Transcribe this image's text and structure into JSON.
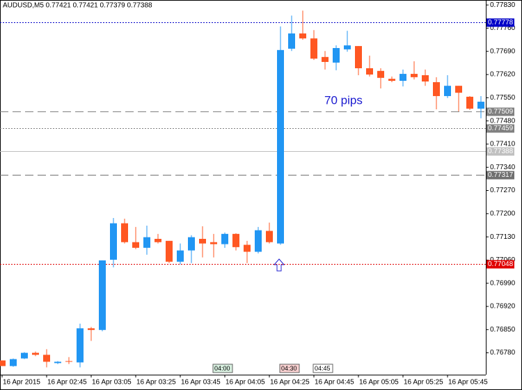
{
  "chart_data": {
    "type": "candlestick",
    "title": "AUDUSD,M5  0.77421 0.77421 0.77379 0.77388",
    "categories": [
      "16 Apr 2015",
      null,
      null,
      null,
      "16 Apr 02:45",
      null,
      null,
      null,
      "16 Apr 03:05",
      null,
      null,
      null,
      "16 Apr 03:25",
      null,
      null,
      null,
      "16 Apr 03:45",
      null,
      null,
      null,
      "16 Apr 04:05",
      null,
      null,
      null,
      "16 Apr 04:25",
      null,
      null,
      null,
      "16 Apr 04:45",
      null,
      null,
      null,
      "16 Apr 05:05",
      null,
      null,
      null,
      "16 Apr 05:25",
      null,
      null,
      null,
      "16 Apr 05:45",
      null,
      null,
      null
    ],
    "open": [
      0.76757,
      0.7674,
      0.76763,
      0.7678,
      0.76774,
      0.76749,
      0.76755,
      0.76751,
      0.76854,
      0.76849,
      0.77061,
      0.77171,
      0.77114,
      0.77097,
      0.77124,
      0.77118,
      0.77055,
      0.77089,
      0.77124,
      0.77114,
      0.77108,
      0.77139,
      0.77106,
      0.77085,
      0.77148,
      0.7711,
      0.77698,
      0.77744,
      0.77729,
      0.77673,
      0.77656,
      0.77696,
      0.77706,
      0.77639,
      0.77631,
      0.77607,
      0.77601,
      0.77622,
      0.77618,
      0.77597,
      0.77555,
      0.77586,
      0.77553,
      0.77517
    ],
    "high": [
      0.76757,
      0.76763,
      0.76782,
      0.76784,
      0.76791,
      0.76755,
      0.76767,
      0.76868,
      0.76858,
      0.77059,
      0.77187,
      0.77185,
      0.7716,
      0.77164,
      0.77139,
      0.77118,
      0.7711,
      0.77135,
      0.77162,
      0.77139,
      0.77143,
      0.77141,
      0.77118,
      0.7716,
      0.77173,
      0.77765,
      0.77798,
      0.77813,
      0.77754,
      0.77691,
      0.77708,
      0.77752,
      0.77706,
      0.77677,
      0.77639,
      0.77614,
      0.77635,
      0.7766,
      0.77635,
      0.77612,
      0.77618,
      0.77586,
      0.77555,
      0.77555
    ],
    "low": [
      0.7674,
      0.76738,
      0.76761,
      0.7677,
      0.76736,
      0.76746,
      0.76746,
      0.76736,
      0.76816,
      0.76845,
      0.77038,
      0.7711,
      0.77093,
      0.77076,
      0.7711,
      0.77051,
      0.77047,
      0.77051,
      0.77068,
      0.77068,
      0.77097,
      0.77089,
      0.77051,
      0.7708,
      0.7711,
      0.77106,
      0.77691,
      0.77725,
      0.77664,
      0.77635,
      0.77633,
      0.77689,
      0.77618,
      0.77614,
      0.77578,
      0.77597,
      0.77584,
      0.77605,
      0.77586,
      0.77515,
      0.77549,
      0.77509,
      0.77513,
      0.77488
    ],
    "close": [
      0.7674,
      0.76761,
      0.7678,
      0.76774,
      0.76753,
      0.76753,
      0.76753,
      0.76854,
      0.76849,
      0.77059,
      0.77171,
      0.77114,
      0.77097,
      0.77129,
      0.77114,
      0.77055,
      0.77089,
      0.77129,
      0.7711,
      0.77108,
      0.77139,
      0.77099,
      0.77085,
      0.7715,
      0.77114,
      0.77694,
      0.77744,
      0.77729,
      0.77668,
      0.77658,
      0.777,
      0.77708,
      0.77639,
      0.7762,
      0.7761,
      0.77601,
      0.77622,
      0.77612,
      0.77599,
      0.77555,
      0.77586,
      0.77565,
      0.77517,
      0.77538
    ],
    "bull_color": "#2196f3",
    "bear_color": "#ff5722",
    "ylim": [
      0.76714,
      0.77845
    ],
    "yticks": [
      {
        "value": 0.7783,
        "label": "0.77830"
      },
      {
        "value": 0.7776,
        "label": "0.77760"
      },
      {
        "value": 0.7769,
        "label": "0.77690"
      },
      {
        "value": 0.7762,
        "label": "0.77620"
      },
      {
        "value": 0.7755,
        "label": "0.77550"
      },
      {
        "value": 0.7748,
        "label": "0.77480"
      },
      {
        "value": 0.7741,
        "label": "0.77410"
      },
      {
        "value": 0.7734,
        "label": "0.77340"
      },
      {
        "value": 0.7727,
        "label": "0.77270"
      },
      {
        "value": 0.772,
        "label": "0.77200"
      },
      {
        "value": 0.7713,
        "label": "0.77130"
      },
      {
        "value": 0.7706,
        "label": "0.77060"
      },
      {
        "value": 0.7699,
        "label": "0.76990"
      },
      {
        "value": 0.7692,
        "label": "0.76920"
      },
      {
        "value": 0.7685,
        "label": "0.76850"
      },
      {
        "value": 0.7678,
        "label": "0.76780"
      }
    ],
    "levels": [
      {
        "value": 0.77778,
        "color": "#0000c8",
        "style": "dotted"
      },
      {
        "value": 0.77509,
        "color": "#808080",
        "style": "dashed"
      },
      {
        "value": 0.77459,
        "color": "#808080",
        "style": "dotted"
      },
      {
        "value": 0.77388,
        "color": "#c0c0c0",
        "style": "solid"
      },
      {
        "value": 0.77317,
        "color": "#707070",
        "style": "dashed"
      },
      {
        "value": 0.77048,
        "color": "#e00000",
        "style": "dotted"
      }
    ],
    "annotation": "70 pips",
    "session_markers": [
      "04:00",
      "04:30",
      "04:45"
    ]
  }
}
